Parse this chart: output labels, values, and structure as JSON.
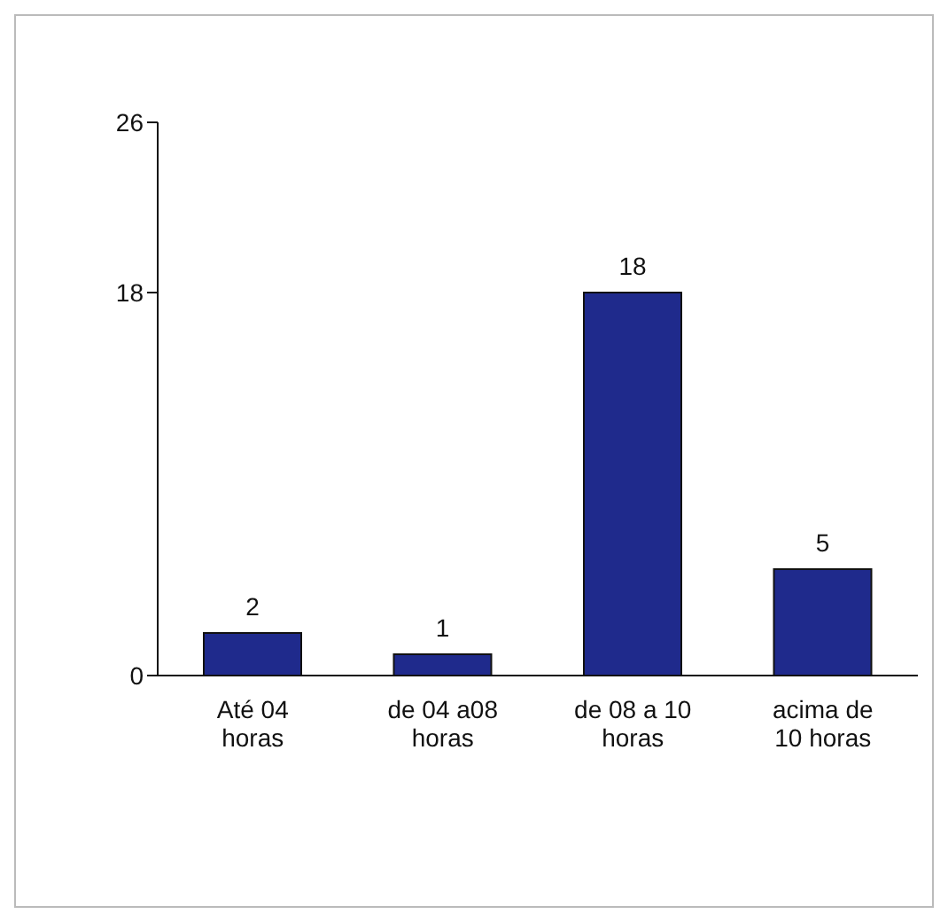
{
  "chart_data": {
    "type": "bar",
    "categories": [
      "Até 04 horas",
      "de 04 a08 horas",
      "de 08 a 10 horas",
      "acima de 10 horas"
    ],
    "values": [
      2,
      1,
      18,
      5
    ],
    "color": "#1f2a8c",
    "ylim": [
      0,
      26
    ],
    "yticks": [
      0,
      18,
      26
    ],
    "grid": false,
    "data_labels": true
  }
}
